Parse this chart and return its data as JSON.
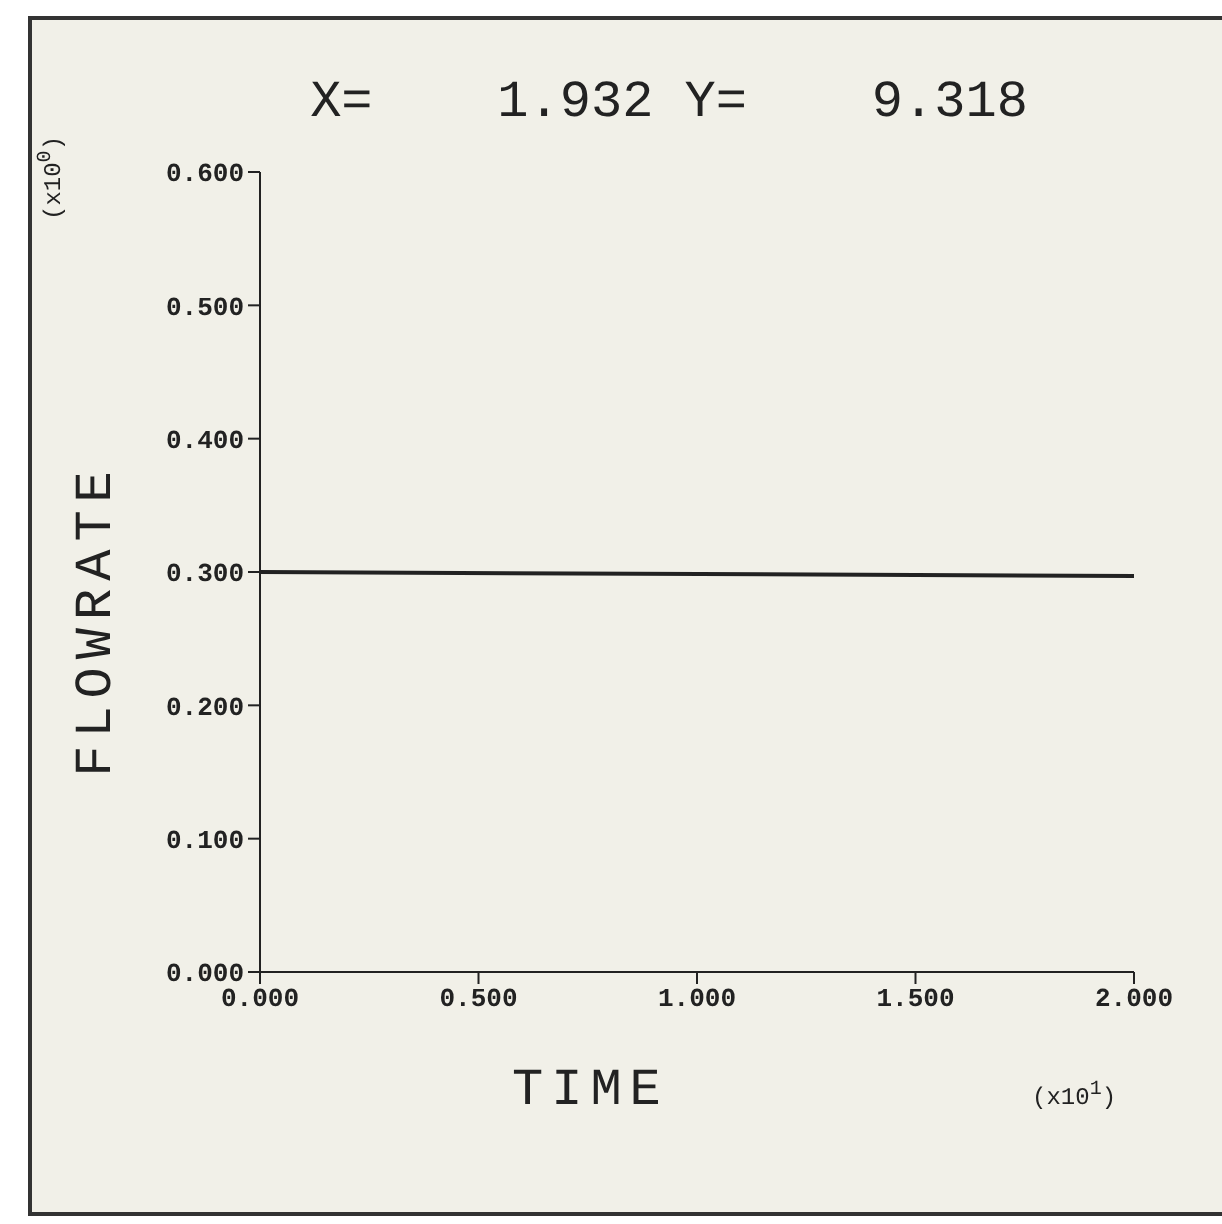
{
  "chart_data": {
    "type": "line",
    "title": "X=    1.932 Y=    9.318",
    "xlabel": "TIME",
    "ylabel": "FLOWRATE",
    "x": [
      0,
      2
    ],
    "series": [
      {
        "color": "#222222",
        "values": [
          0.3,
          0.297
        ]
      }
    ],
    "xlim": [
      0,
      2
    ],
    "ylim": [
      0,
      0.6
    ],
    "xticks": [
      {
        "value": 0,
        "label": "0.000"
      },
      {
        "value": 0.5,
        "label": "0.500"
      },
      {
        "value": 1,
        "label": "1.000"
      },
      {
        "value": 1.5,
        "label": "1.500"
      },
      {
        "value": 2,
        "label": "2.000"
      }
    ],
    "yticks": [
      {
        "value": 0,
        "label": "0.000"
      },
      {
        "value": 0.1,
        "label": "0.100"
      },
      {
        "value": 0.2,
        "label": "0.200"
      },
      {
        "value": 0.3,
        "label": "0.300"
      },
      {
        "value": 0.4,
        "label": "0.400"
      },
      {
        "value": 0.5,
        "label": "0.500"
      },
      {
        "value": 0.6,
        "label": "0.600"
      }
    ],
    "annotations": [
      "(x10$^{1}$)",
      "(x10$^{0}$)"
    ],
    "grid": false,
    "legend": false,
    "marker": "none",
    "line_style": "solid"
  }
}
